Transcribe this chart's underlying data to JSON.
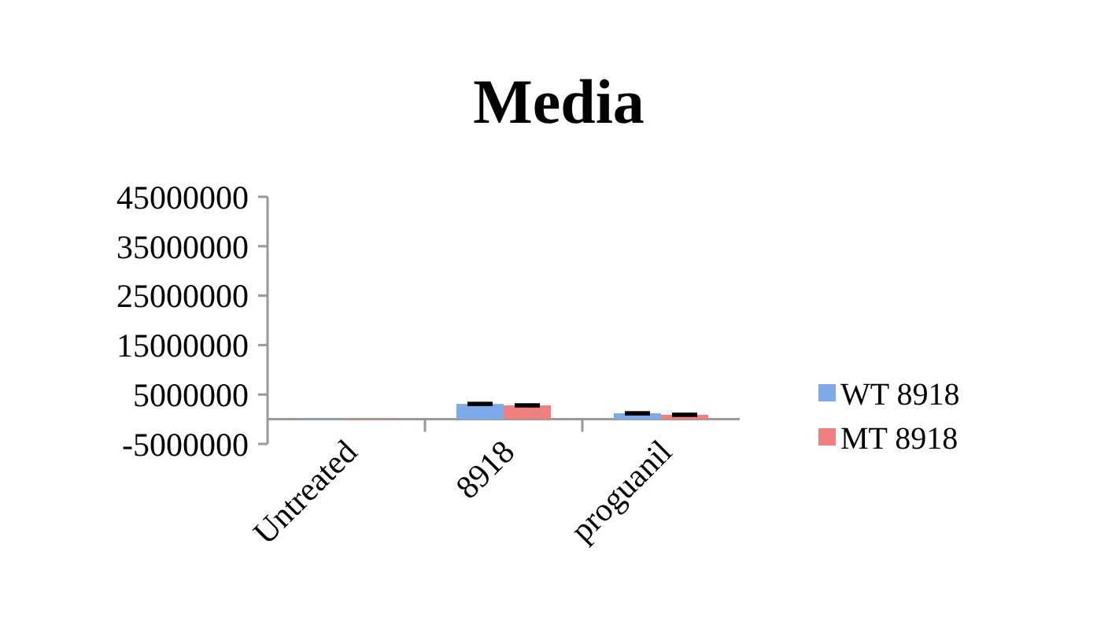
{
  "chart_data": {
    "type": "bar",
    "title": "Media",
    "categories": [
      "Untreated",
      "8918",
      "proguanil"
    ],
    "series": [
      {
        "name": "WT 8918",
        "color": "#7eaaea",
        "values": [
          100000,
          3100000,
          1200000
        ],
        "errors": [
          null,
          200000,
          200000
        ]
      },
      {
        "name": "MT 8918",
        "color": "#f08080",
        "values": [
          100000,
          2800000,
          900000
        ],
        "errors": [
          null,
          200000,
          200000
        ]
      }
    ],
    "ylim": [
      -5000000,
      45000000
    ],
    "yticks": [
      -5000000,
      5000000,
      15000000,
      25000000,
      35000000,
      45000000
    ],
    "legend": "right"
  }
}
